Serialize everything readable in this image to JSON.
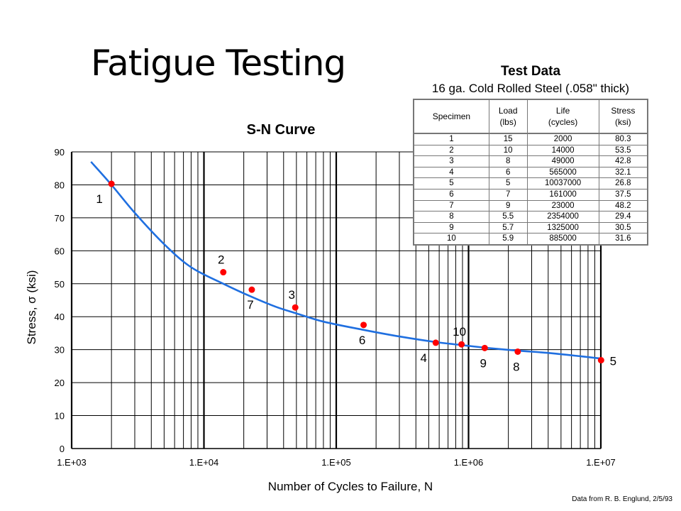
{
  "slide": {
    "title": "Fatigue Testing",
    "credit": "Data from R. B. Englund, 2/5/93"
  },
  "table": {
    "title": "Test Data",
    "subtitle": "16 ga. Cold Rolled Steel (.058\" thick)",
    "headers": [
      "Specimen",
      "Load\n(lbs)",
      "Life\n(cycles)",
      "Stress\n(ksi)"
    ],
    "rows": [
      [
        "1",
        "15",
        "2000",
        "80.3"
      ],
      [
        "2",
        "10",
        "14000",
        "53.5"
      ],
      [
        "3",
        "8",
        "49000",
        "42.8"
      ],
      [
        "4",
        "6",
        "565000",
        "32.1"
      ],
      [
        "5",
        "5",
        "10037000",
        "26.8"
      ],
      [
        "6",
        "7",
        "161000",
        "37.5"
      ],
      [
        "7",
        "9",
        "23000",
        "48.2"
      ],
      [
        "8",
        "5.5",
        "2354000",
        "29.4"
      ],
      [
        "9",
        "5.7",
        "1325000",
        "30.5"
      ],
      [
        "10",
        "5.9",
        "885000",
        "31.6"
      ]
    ]
  },
  "chart_data": {
    "type": "scatter",
    "title": "S-N Curve",
    "xlabel": "Number of Cycles to Failure, N",
    "ylabel": "Stress, σ (ksi)",
    "x_scale": "log",
    "xlim": [
      1000,
      10000000
    ],
    "ylim": [
      0,
      90
    ],
    "xticks": [
      "1.E+03",
      "1.E+04",
      "1.E+05",
      "1.E+06",
      "1.E+07"
    ],
    "yticks": [
      "0",
      "10",
      "20",
      "30",
      "40",
      "50",
      "60",
      "70",
      "80",
      "90"
    ],
    "grid": true,
    "colors": {
      "points": "#ff0000",
      "curve": "#1f6fe0"
    },
    "points": [
      {
        "label": "1",
        "x": 2000,
        "y": 80.3,
        "label_pos": "below-left"
      },
      {
        "label": "2",
        "x": 14000,
        "y": 53.5,
        "label_pos": "above"
      },
      {
        "label": "3",
        "x": 49000,
        "y": 42.8,
        "label_pos": "above-left"
      },
      {
        "label": "4",
        "x": 565000,
        "y": 32.1,
        "label_pos": "below-left"
      },
      {
        "label": "5",
        "x": 10037000,
        "y": 26.8,
        "label_pos": "right"
      },
      {
        "label": "6",
        "x": 161000,
        "y": 37.5,
        "label_pos": "below"
      },
      {
        "label": "7",
        "x": 23000,
        "y": 48.2,
        "label_pos": "below"
      },
      {
        "label": "8",
        "x": 2354000,
        "y": 29.4,
        "label_pos": "below"
      },
      {
        "label": "9",
        "x": 1325000,
        "y": 30.5,
        "label_pos": "below"
      },
      {
        "label": "10",
        "x": 885000,
        "y": 31.6,
        "label_pos": "above"
      }
    ],
    "fit_curve": [
      [
        1400,
        87
      ],
      [
        2000,
        80
      ],
      [
        3000,
        71.5
      ],
      [
        5000,
        62
      ],
      [
        8000,
        55
      ],
      [
        14000,
        50
      ],
      [
        23000,
        46
      ],
      [
        35000,
        43
      ],
      [
        50000,
        41
      ],
      [
        80000,
        38.5
      ],
      [
        161000,
        36
      ],
      [
        300000,
        34
      ],
      [
        565000,
        32.3
      ],
      [
        885000,
        31.4
      ],
      [
        1325000,
        30.6
      ],
      [
        2354000,
        29.7
      ],
      [
        4000000,
        29
      ],
      [
        7000000,
        28
      ],
      [
        10037000,
        27.3
      ]
    ]
  }
}
